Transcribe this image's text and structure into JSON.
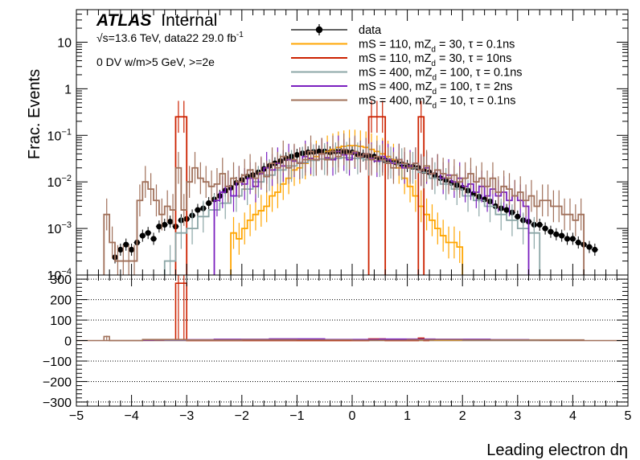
{
  "chart_data": [
    {
      "type": "line",
      "panel": "main",
      "xlabel": "Leading electron dη",
      "ylabel": "Frac. Events",
      "yscale": "log",
      "xlim": [
        -5,
        5
      ],
      "ylim": [
        0.0001,
        50
      ],
      "grid": false,
      "legend_position": "top-center",
      "labels": {
        "atlas": "ATLAS",
        "internal": "Internal",
        "energy_prefix": "√s=13.6 TeV, data22 29.0 fb",
        "energy_sup": "-1",
        "selection": "0 DV w/m>5 GeV, >=2e"
      },
      "y_ticks": [
        {
          "value": 10,
          "base": "10",
          "exp": ""
        },
        {
          "value": 1,
          "base": "1",
          "exp": ""
        },
        {
          "value": 0.1,
          "base": "10",
          "exp": "−1"
        },
        {
          "value": 0.01,
          "base": "10",
          "exp": "−2"
        },
        {
          "value": 0.001,
          "base": "10",
          "exp": "−3"
        },
        {
          "value": 0.0001,
          "base": "10",
          "exp": "−4"
        }
      ],
      "series": [
        {
          "name": "data",
          "legend": {
            "pre": "data",
            "sub": "",
            "post": ""
          },
          "kind": "points",
          "color": "#000000",
          "x": [
            -4.5,
            -4.3,
            -4.2,
            -4.1,
            -4.0,
            -3.9,
            -3.8,
            -3.7,
            -3.6,
            -3.5,
            -3.4,
            -3.3,
            -3.2,
            -3.1,
            -3.0,
            -2.9,
            -2.8,
            -2.7,
            -2.6,
            -2.5,
            -2.4,
            -2.3,
            -2.2,
            -2.1,
            -2.0,
            -1.9,
            -1.8,
            -1.7,
            -1.6,
            -1.5,
            -1.4,
            -1.3,
            -1.2,
            -1.1,
            -1.0,
            -0.9,
            -0.8,
            -0.7,
            -0.6,
            -0.5,
            -0.4,
            -0.3,
            -0.2,
            -0.1,
            0.0,
            0.1,
            0.2,
            0.3,
            0.4,
            0.5,
            0.6,
            0.7,
            0.8,
            0.9,
            1.0,
            1.1,
            1.2,
            1.3,
            1.4,
            1.5,
            1.6,
            1.7,
            1.8,
            1.9,
            2.0,
            2.1,
            2.2,
            2.3,
            2.4,
            2.5,
            2.6,
            2.7,
            2.8,
            2.9,
            3.0,
            3.1,
            3.2,
            3.3,
            3.4,
            3.5,
            3.6,
            3.7,
            3.8,
            3.9,
            4.0,
            4.1,
            4.2,
            4.3,
            4.4,
            4.6
          ],
          "y": [
            8e-05,
            0.00024,
            0.00035,
            0.00045,
            0.00035,
            0.0005,
            0.0007,
            0.0008,
            0.0006,
            0.0011,
            0.0012,
            0.0014,
            0.0011,
            0.0015,
            0.0016,
            0.0019,
            0.0025,
            0.0027,
            0.0035,
            0.0042,
            0.005,
            0.0065,
            0.0075,
            0.0095,
            0.011,
            0.013,
            0.014,
            0.016,
            0.019,
            0.022,
            0.025,
            0.028,
            0.032,
            0.035,
            0.038,
            0.041,
            0.043,
            0.044,
            0.045,
            0.045,
            0.043,
            0.045,
            0.045,
            0.044,
            0.043,
            0.039,
            0.037,
            0.036,
            0.035,
            0.031,
            0.029,
            0.028,
            0.026,
            0.024,
            0.022,
            0.021,
            0.02,
            0.017,
            0.016,
            0.014,
            0.012,
            0.011,
            0.0095,
            0.0085,
            0.0075,
            0.0065,
            0.0055,
            0.0048,
            0.0042,
            0.0038,
            0.003,
            0.0027,
            0.0025,
            0.0022,
            0.0018,
            0.0015,
            0.0014,
            0.0012,
            0.0012,
            0.001,
            0.00085,
            0.00075,
            0.0007,
            0.0006,
            0.0006,
            0.0005,
            0.00045,
            0.0004,
            0.00035,
            8e-05
          ]
        },
        {
          "name": "mS = 110, mZd = 30, τ = 0.1ns",
          "legend": {
            "pre": "mS = 110, mZ",
            "sub": "d",
            "post": " = 30, τ = 0.1ns"
          },
          "kind": "hist",
          "color": "#ffa500",
          "edges": [
            -2.2,
            -2.1,
            -2.0,
            -1.9,
            -1.8,
            -1.7,
            -1.6,
            -1.5,
            -1.4,
            -1.3,
            -1.2,
            -1.1,
            -1.0,
            -0.9,
            -0.8,
            -0.7,
            -0.6,
            -0.5,
            -0.4,
            -0.3,
            -0.2,
            -0.1,
            0.0,
            0.1,
            0.2,
            0.3,
            0.4,
            0.5,
            0.6,
            0.7,
            0.8,
            0.9,
            1.0,
            1.1,
            1.2,
            1.3,
            1.4,
            1.5,
            1.6,
            1.7,
            1.8,
            1.9,
            2.0
          ],
          "values": [
            0.0008,
            0.0006,
            0.001,
            0.0015,
            0.002,
            0.0024,
            0.003,
            0.005,
            0.006,
            0.009,
            0.012,
            0.018,
            0.02,
            0.025,
            0.03,
            0.035,
            0.04,
            0.045,
            0.05,
            0.055,
            0.058,
            0.06,
            0.06,
            0.058,
            0.055,
            0.05,
            0.045,
            0.04,
            0.035,
            0.03,
            0.02,
            0.012,
            0.008,
            0.005,
            0.003,
            0.002,
            0.0015,
            0.001,
            0.0007,
            0.0005,
            0.0005,
            0.0004
          ]
        },
        {
          "name": "mS = 110, mZd = 30, τ = 10ns",
          "legend": {
            "pre": "mS = 110, mZ",
            "sub": "d",
            "post": " = 30, τ = 10ns"
          },
          "kind": "hist",
          "color": "#cc2200",
          "edges": [
            -3.2,
            -3.1,
            -3.0,
            0.3,
            0.4,
            0.5,
            0.6,
            1.2,
            1.3,
            1.4
          ],
          "values": [
            0.25,
            0.25,
            0.0,
            0.25,
            0.25,
            0.25,
            0.0,
            0.25,
            0.0
          ]
        },
        {
          "name": "mS = 400, mZd = 100, τ = 0.1ns",
          "legend": {
            "pre": "mS = 400, mZ",
            "sub": "d",
            "post": " = 100, τ = 0.1ns"
          },
          "kind": "hist",
          "color": "#8ba6a6",
          "edges": [
            -3.4,
            -3.2,
            -3.0,
            -2.8,
            -2.6,
            -2.4,
            -2.2,
            -2.0,
            -1.8,
            -1.6,
            -1.4,
            -1.2,
            -1.0,
            -0.8,
            -0.6,
            -0.4,
            -0.2,
            0.0,
            0.2,
            0.4,
            0.6,
            0.8,
            1.0,
            1.2,
            1.4,
            1.6,
            1.8,
            2.0,
            2.2,
            2.4,
            2.6,
            2.8,
            3.0,
            3.2,
            3.4
          ],
          "values": [
            0.0002,
            0.0008,
            0.001,
            0.0018,
            0.0025,
            0.0035,
            0.005,
            0.007,
            0.01,
            0.014,
            0.018,
            0.022,
            0.026,
            0.029,
            0.031,
            0.032,
            0.033,
            0.032,
            0.03,
            0.028,
            0.026,
            0.024,
            0.02,
            0.016,
            0.012,
            0.009,
            0.007,
            0.005,
            0.004,
            0.003,
            0.002,
            0.0015,
            0.001,
            0.0008
          ]
        },
        {
          "name": "mS = 400, mZd = 100, τ = 2ns",
          "legend": {
            "pre": "mS = 400, mZ",
            "sub": "d",
            "post": " = 100, τ = 2ns"
          },
          "kind": "hist",
          "color": "#7a1fbf",
          "edges": [
            -2.5,
            -2.4,
            -2.3,
            -2.2,
            -2.1,
            -2.0,
            -1.9,
            -1.8,
            -1.7,
            -1.6,
            -1.5,
            -1.4,
            -1.3,
            -1.2,
            -1.1,
            -1.0,
            -0.9,
            -0.8,
            -0.7,
            -0.6,
            -0.5,
            -0.4,
            -0.3,
            -0.2,
            -0.1,
            0.0,
            0.1,
            0.2,
            0.3,
            0.4,
            0.5,
            0.6,
            0.7,
            0.8,
            0.9,
            1.0,
            1.1,
            1.2,
            1.3,
            1.4,
            1.5,
            1.6,
            1.7,
            1.8,
            1.9,
            2.0,
            2.1,
            2.2,
            2.3,
            2.4,
            2.5,
            2.6,
            2.7,
            2.8,
            2.9,
            3.0,
            3.1,
            3.2
          ],
          "values": [
            0.004,
            0.006,
            0.008,
            0.005,
            0.01,
            0.009,
            0.012,
            0.008,
            0.015,
            0.02,
            0.018,
            0.025,
            0.022,
            0.03,
            0.028,
            0.025,
            0.035,
            0.032,
            0.03,
            0.04,
            0.033,
            0.03,
            0.045,
            0.038,
            0.03,
            0.042,
            0.035,
            0.04,
            0.032,
            0.028,
            0.035,
            0.03,
            0.025,
            0.03,
            0.02,
            0.022,
            0.025,
            0.018,
            0.02,
            0.015,
            0.018,
            0.012,
            0.014,
            0.01,
            0.012,
            0.008,
            0.009,
            0.006,
            0.008,
            0.005,
            0.007,
            0.005,
            0.006,
            0.004,
            0.005,
            0.004,
            0.003
          ]
        },
        {
          "name": "mS = 400, mZd = 10, τ = 0.1ns",
          "legend": {
            "pre": "mS = 400, mZ",
            "sub": "d",
            "post": " = 10, τ = 0.1ns"
          },
          "kind": "hist",
          "color": "#a0705a",
          "edges": [
            -4.5,
            -4.4,
            -4.3,
            -4.2,
            -4.1,
            -4.0,
            -3.9,
            -3.8,
            -3.7,
            -3.6,
            -3.5,
            -3.4,
            -3.3,
            -3.2,
            -3.1,
            -3.0,
            -2.9,
            -2.8,
            -2.7,
            -2.6,
            -2.5,
            -2.4,
            -2.3,
            -2.2,
            -2.1,
            -2.0,
            -1.9,
            -1.8,
            -1.7,
            -1.6,
            -1.5,
            -1.4,
            -1.3,
            -1.2,
            -1.1,
            -1.0,
            -0.9,
            -0.8,
            -0.7,
            -0.6,
            -0.5,
            -0.4,
            -0.3,
            -0.2,
            -0.1,
            0.0,
            0.1,
            0.2,
            0.3,
            0.4,
            0.5,
            0.6,
            0.7,
            0.8,
            0.9,
            1.0,
            1.1,
            1.2,
            1.3,
            1.4,
            1.5,
            1.6,
            1.7,
            1.8,
            1.9,
            2.0,
            2.1,
            2.2,
            2.3,
            2.4,
            2.5,
            2.6,
            2.7,
            2.8,
            2.9,
            3.0,
            3.1,
            3.2,
            3.3,
            3.4,
            3.5,
            3.6,
            3.7,
            3.8,
            3.9,
            4.0,
            4.1,
            4.2
          ],
          "values": [
            0.002,
            0.0005,
            0.0002,
            0.0002,
            0.0002,
            0.0002,
            0.004,
            0.01,
            0.007,
            0.004,
            0.002,
            0.003,
            0.0025,
            0.02,
            0.0025,
            0.01,
            0.02,
            0.012,
            0.01,
            0.008,
            0.009,
            0.015,
            0.008,
            0.012,
            0.01,
            0.014,
            0.018,
            0.012,
            0.016,
            0.013,
            0.025,
            0.02,
            0.035,
            0.02,
            0.03,
            0.025,
            0.03,
            0.045,
            0.03,
            0.04,
            0.03,
            0.045,
            0.035,
            0.05,
            0.04,
            0.045,
            0.035,
            0.04,
            0.03,
            0.035,
            0.03,
            0.025,
            0.02,
            0.03,
            0.025,
            0.02,
            0.025,
            0.018,
            0.022,
            0.015,
            0.018,
            0.015,
            0.012,
            0.014,
            0.01,
            0.012,
            0.015,
            0.01,
            0.012,
            0.008,
            0.012,
            0.006,
            0.008,
            0.007,
            0.005,
            0.006,
            0.004,
            0.005,
            0.003,
            0.004,
            0.004,
            0.003,
            0.003,
            0.002,
            0.002,
            0.0015,
            0.002
          ]
        }
      ]
    },
    {
      "type": "line",
      "panel": "ratio",
      "xlabel": "Leading electron dη",
      "ylabel": "",
      "xlim": [
        -5,
        5
      ],
      "ylim": [
        -320,
        320
      ],
      "x_ticks": [
        "−5",
        "−4",
        "−3",
        "−2",
        "−1",
        "0",
        "1",
        "2",
        "3",
        "4",
        "5"
      ],
      "y_ticks": [
        {
          "value": 300,
          "label": "300"
        },
        {
          "value": 200,
          "label": "200"
        },
        {
          "value": 100,
          "label": "100"
        },
        {
          "value": 0,
          "label": "0"
        },
        {
          "value": -100,
          "label": "−100"
        },
        {
          "value": -200,
          "label": "−200"
        },
        {
          "value": -300,
          "label": "−300"
        }
      ],
      "grid_y_values": [
        300,
        200,
        100,
        -100,
        -200,
        -300
      ],
      "series": [
        {
          "color": "#ffa500",
          "edges": [
            -2.2,
            -1.5,
            -0.5,
            0.5,
            1.5,
            2.0
          ],
          "values": [
            1,
            2,
            3,
            2,
            1
          ]
        },
        {
          "color": "#cc2200",
          "edges": [
            -3.2,
            -3.1,
            -3.0,
            0.3,
            0.4,
            0.5,
            0.6,
            1.2,
            1.3,
            1.4
          ],
          "values": [
            280,
            280,
            0,
            8,
            8,
            8,
            0,
            12,
            0
          ]
        },
        {
          "color": "#8ba6a6",
          "edges": [
            -3.4,
            -2.0,
            0.0,
            2.0,
            3.4
          ],
          "values": [
            2,
            3,
            3,
            2
          ]
        },
        {
          "color": "#7a1fbf",
          "edges": [
            -3.8,
            -3.6,
            -2.5,
            -1.5,
            -0.5,
            0.5,
            1.5,
            2.5,
            3.2
          ],
          "values": [
            3,
            4,
            6,
            8,
            5,
            7,
            6,
            4
          ]
        },
        {
          "color": "#a0705a",
          "edges": [
            -4.5,
            -4.4,
            -4.3,
            -3.8,
            -3.0,
            -2.0,
            -1.0,
            0.0,
            1.0,
            2.0,
            3.0,
            4.2
          ],
          "values": [
            20,
            0,
            0,
            5,
            3,
            4,
            3,
            2,
            4,
            3,
            3
          ]
        }
      ]
    }
  ]
}
